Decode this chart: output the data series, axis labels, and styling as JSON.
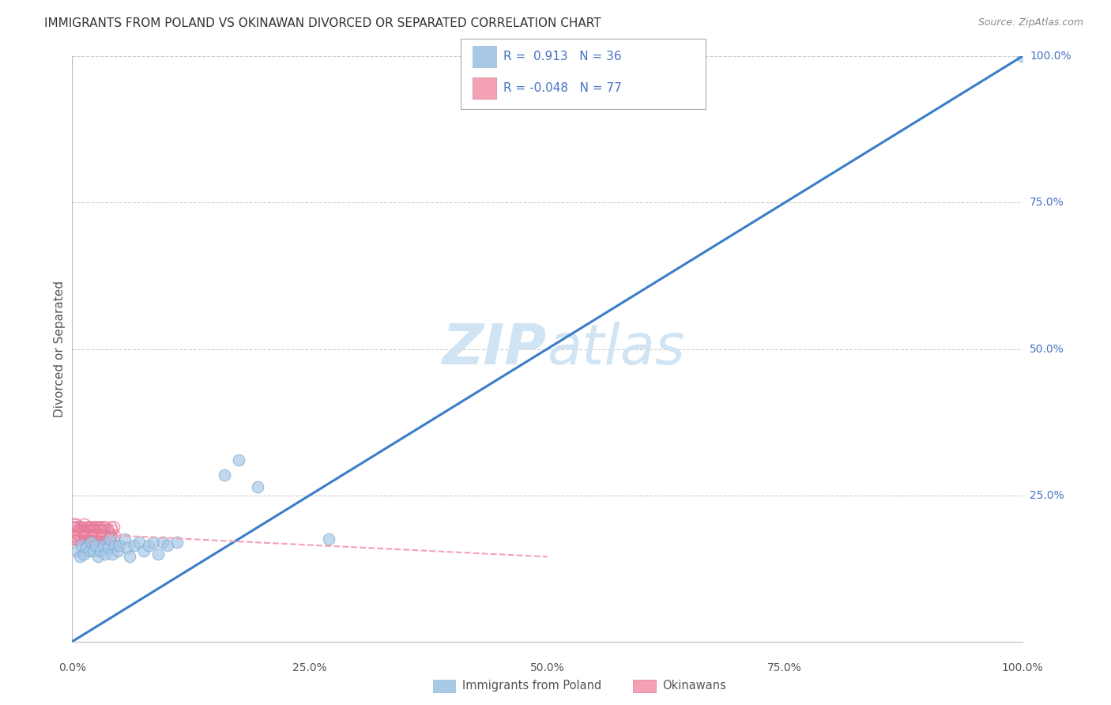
{
  "title": "IMMIGRANTS FROM POLAND VS OKINAWAN DIVORCED OR SEPARATED CORRELATION CHART",
  "source": "Source: ZipAtlas.com",
  "ylabel": "Divorced or Separated",
  "xlim": [
    0,
    1.0
  ],
  "ylim": [
    0,
    1.0
  ],
  "xtick_labels": [
    "0.0%",
    "25.0%",
    "50.0%",
    "75.0%",
    "100.0%"
  ],
  "xtick_vals": [
    0.0,
    0.25,
    0.5,
    0.75,
    1.0
  ],
  "right_ytick_labels": [
    "25.0%",
    "50.0%",
    "75.0%",
    "100.0%"
  ],
  "right_ytick_vals": [
    0.25,
    0.5,
    0.75,
    1.0
  ],
  "blue_color": "#a8c8e8",
  "blue_edge_color": "#7aabcf",
  "pink_color": "#f4a0b5",
  "pink_edge_color": "#e87a9a",
  "line_blue": "#3a7dc9",
  "line_pink": "#f4a0b5",
  "watermark_color": "#d0e4f4",
  "legend_label_color": "#4472c4",
  "title_color": "#333333",
  "axis_color": "#555555",
  "grid_color": "#cccccc",
  "background_color": "#ffffff",
  "blue_scatter_x": [
    0.005,
    0.008,
    0.01,
    0.012,
    0.015,
    0.018,
    0.02,
    0.022,
    0.025,
    0.027,
    0.03,
    0.033,
    0.035,
    0.038,
    0.04,
    0.042,
    0.045,
    0.048,
    0.05,
    0.055,
    0.058,
    0.06,
    0.065,
    0.07,
    0.075,
    0.08,
    0.085,
    0.09,
    0.095,
    0.1,
    0.11,
    0.16,
    0.175,
    0.195,
    0.27,
    1.0
  ],
  "blue_scatter_y": [
    0.155,
    0.145,
    0.165,
    0.15,
    0.16,
    0.155,
    0.17,
    0.155,
    0.165,
    0.145,
    0.155,
    0.165,
    0.15,
    0.16,
    0.175,
    0.15,
    0.165,
    0.155,
    0.165,
    0.175,
    0.16,
    0.145,
    0.165,
    0.17,
    0.155,
    0.165,
    0.17,
    0.15,
    0.17,
    0.165,
    0.17,
    0.285,
    0.31,
    0.265,
    0.175,
    1.0
  ],
  "pink_scatter_x": [
    0.001,
    0.002,
    0.002,
    0.003,
    0.003,
    0.004,
    0.004,
    0.005,
    0.005,
    0.006,
    0.006,
    0.007,
    0.007,
    0.008,
    0.008,
    0.009,
    0.009,
    0.01,
    0.01,
    0.011,
    0.011,
    0.012,
    0.012,
    0.013,
    0.013,
    0.014,
    0.015,
    0.015,
    0.016,
    0.016,
    0.017,
    0.017,
    0.018,
    0.018,
    0.019,
    0.019,
    0.02,
    0.02,
    0.021,
    0.021,
    0.022,
    0.022,
    0.023,
    0.023,
    0.024,
    0.024,
    0.025,
    0.025,
    0.026,
    0.026,
    0.027,
    0.028,
    0.028,
    0.029,
    0.029,
    0.03,
    0.03,
    0.031,
    0.031,
    0.032,
    0.033,
    0.033,
    0.034,
    0.035,
    0.035,
    0.036,
    0.037,
    0.038,
    0.038,
    0.039,
    0.04,
    0.041,
    0.041,
    0.042,
    0.043,
    0.044,
    0.045
  ],
  "pink_scatter_y": [
    0.195,
    0.175,
    0.2,
    0.18,
    0.195,
    0.175,
    0.2,
    0.185,
    0.195,
    0.175,
    0.19,
    0.18,
    0.195,
    0.175,
    0.19,
    0.18,
    0.195,
    0.175,
    0.19,
    0.185,
    0.195,
    0.175,
    0.19,
    0.18,
    0.2,
    0.175,
    0.19,
    0.185,
    0.175,
    0.195,
    0.18,
    0.19,
    0.175,
    0.195,
    0.18,
    0.19,
    0.175,
    0.195,
    0.18,
    0.19,
    0.175,
    0.195,
    0.18,
    0.19,
    0.175,
    0.195,
    0.18,
    0.19,
    0.175,
    0.195,
    0.18,
    0.175,
    0.195,
    0.18,
    0.19,
    0.175,
    0.195,
    0.18,
    0.19,
    0.175,
    0.195,
    0.18,
    0.19,
    0.175,
    0.195,
    0.18,
    0.19,
    0.175,
    0.19,
    0.185,
    0.175,
    0.195,
    0.18,
    0.19,
    0.175,
    0.195,
    0.18
  ],
  "blue_line_x": [
    0.0,
    1.0
  ],
  "blue_line_y": [
    0.0,
    1.0
  ],
  "pink_line_x": [
    0.0,
    0.5
  ],
  "pink_line_y": [
    0.185,
    0.145
  ]
}
